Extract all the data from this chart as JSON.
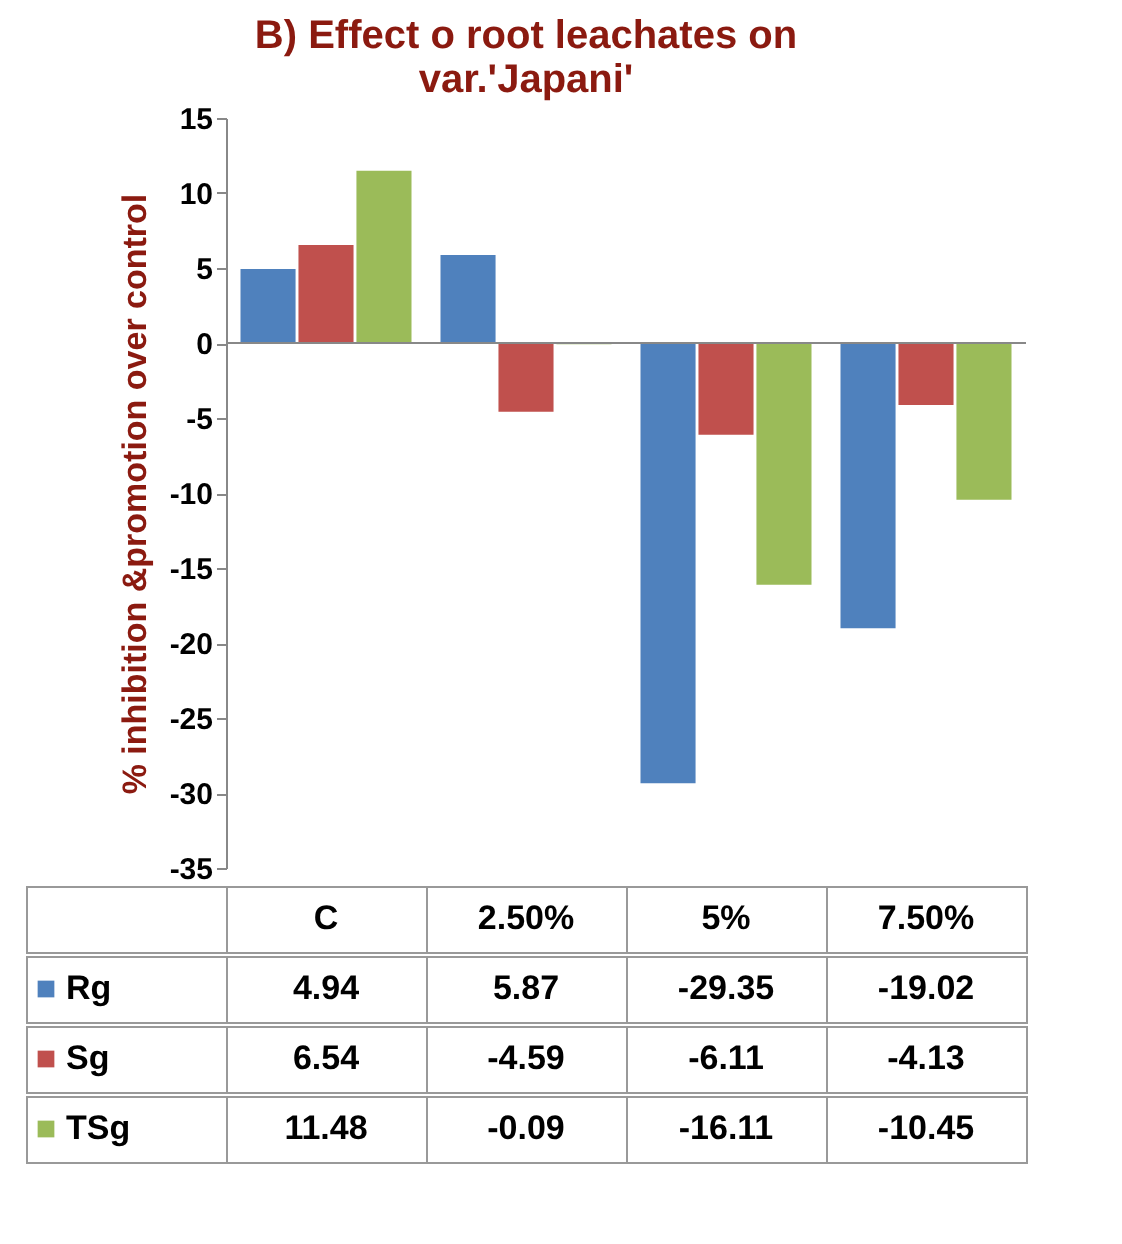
{
  "chart_data": {
    "type": "bar",
    "title": "B) Effect o root leachates on var.'Japani'",
    "ylabel": "% inhibition &promotion over control",
    "categories": [
      "C",
      "2.50%",
      "5%",
      "7.50%"
    ],
    "series": [
      {
        "name": "Rg",
        "color": "#4f81bd",
        "values": [
          4.94,
          5.87,
          -29.35,
          -19.02
        ]
      },
      {
        "name": "Sg",
        "color": "#c0504d",
        "values": [
          6.54,
          -4.59,
          -6.11,
          -4.13
        ]
      },
      {
        "name": "TSg",
        "color": "#9bbb59",
        "values": [
          11.48,
          -0.09,
          -16.11,
          -10.45
        ]
      }
    ],
    "ylim": [
      -35,
      15
    ],
    "yticks": [
      -35,
      -30,
      -25,
      -20,
      -15,
      -10,
      -5,
      0,
      5,
      10,
      15
    ],
    "data_labels": true,
    "legend": "bottom left"
  }
}
